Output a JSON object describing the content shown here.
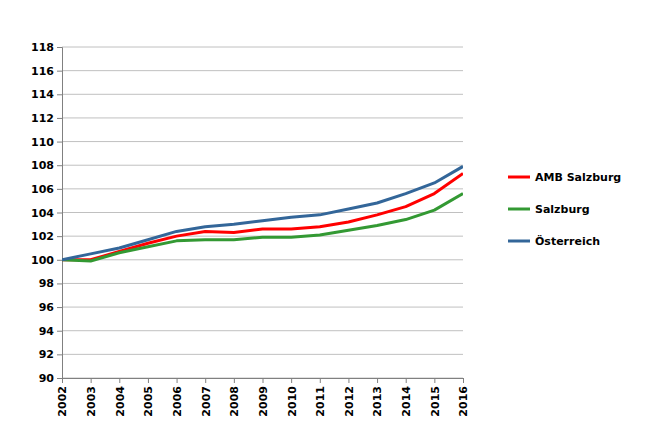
{
  "chart_data": {
    "type": "line",
    "categories": [
      "2002",
      "2003",
      "2004",
      "2005",
      "2006",
      "2007",
      "2008",
      "2009",
      "2010",
      "2011",
      "2012",
      "2013",
      "2014",
      "2015",
      "2016"
    ],
    "series": [
      {
        "name": "AMB Salzburg",
        "color": "#ff0000",
        "values": [
          100,
          100.0,
          100.7,
          101.4,
          102.0,
          102.4,
          102.3,
          102.6,
          102.6,
          102.8,
          103.2,
          103.8,
          104.5,
          105.6,
          107.3
        ]
      },
      {
        "name": "Salzburg",
        "color": "#339933",
        "values": [
          100,
          99.9,
          100.6,
          101.1,
          101.6,
          101.7,
          101.7,
          101.9,
          101.9,
          102.1,
          102.5,
          102.9,
          103.4,
          104.2,
          105.6
        ]
      },
      {
        "name": "Österreich",
        "color": "#336699",
        "values": [
          100,
          100.5,
          101.0,
          101.7,
          102.4,
          102.8,
          103.0,
          103.3,
          103.6,
          103.8,
          104.3,
          104.8,
          105.6,
          106.5,
          107.9
        ]
      }
    ],
    "ylim": [
      90,
      118
    ],
    "yticks": [
      90,
      92,
      94,
      96,
      98,
      100,
      102,
      104,
      106,
      108,
      110,
      112,
      114,
      116,
      118
    ],
    "grid": true,
    "legend": "right"
  }
}
